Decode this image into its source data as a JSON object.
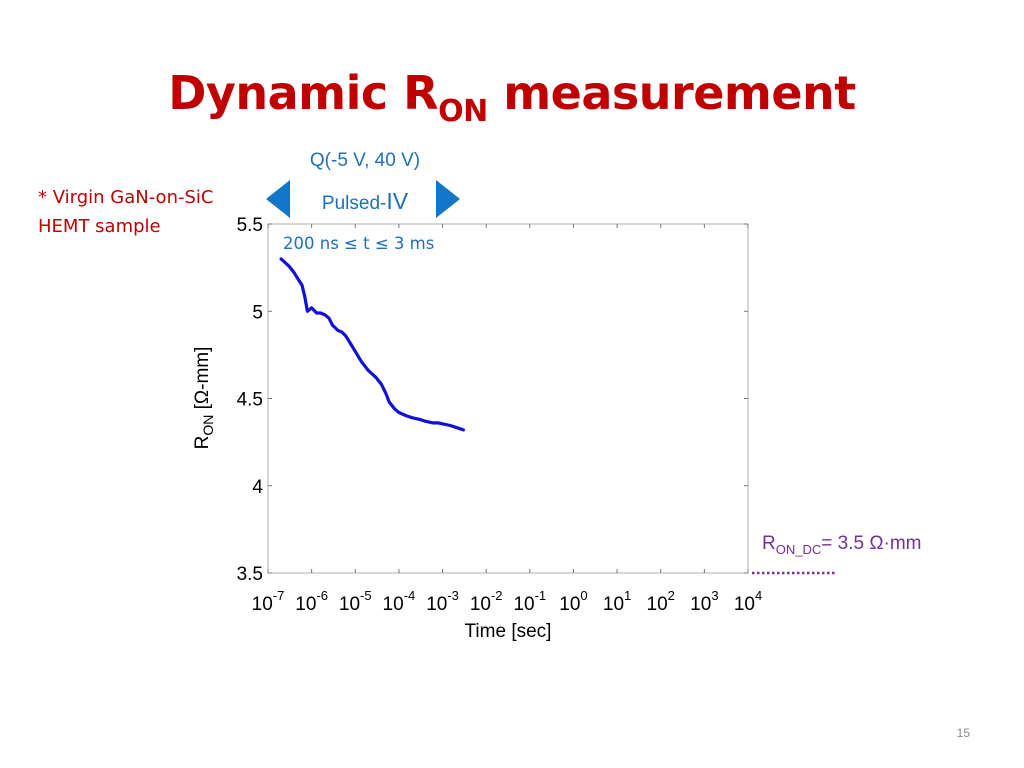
{
  "slide": {
    "title_main": "Dynamic R",
    "title_sub": "ON",
    "title_rest": " measurement",
    "note": "* Virgin GaN-on-SiC HEMT sample",
    "condition": "Q(-5 V, 40 V)",
    "pulsed_prefix": "Pulsed-",
    "pulsed_suffix": "IV",
    "pulse_range": "200 ns ≤ t ≤ 3 ms",
    "ron_dc_main": "R",
    "ron_dc_sub": "ON_DC",
    "ron_dc_value": "= 3.5 Ω·mm",
    "page_number": "15",
    "colors": {
      "title": "#c00000",
      "series": "#1010d8",
      "annotation": "#1f6fc0",
      "dc_reference": "#7030a0"
    }
  },
  "chart_data": {
    "type": "line",
    "xlabel": "Time [sec]",
    "ylabel_main": "R",
    "ylabel_sub": "ON",
    "ylabel_unit": " [Ω-mm]",
    "x_scale": "log",
    "xlim": [
      1e-07,
      10000
    ],
    "ylim": [
      3.5,
      5.5
    ],
    "x_tick_exponents": [
      -7,
      -6,
      -5,
      -4,
      -3,
      -2,
      -1,
      0,
      1,
      2,
      3,
      4
    ],
    "x_tick_base": "10",
    "y_ticks": [
      3.5,
      4,
      4.5,
      5,
      5.5
    ],
    "y_tick_labels": [
      "3.5",
      "4",
      "4.5",
      "5",
      "5.5"
    ],
    "grid": false,
    "series": [
      {
        "x": [
          2e-07,
          3e-07,
          4e-07,
          5e-07,
          6e-07,
          7e-07,
          8e-07,
          1e-06,
          1.3e-06,
          1.6e-06,
          2e-06,
          2.5e-06,
          3e-06,
          4e-06,
          5e-06,
          6e-06,
          8e-06,
          1e-05,
          1.4e-05,
          2e-05,
          3e-05,
          4e-05,
          5e-05,
          6e-05,
          8e-05,
          0.0001,
          0.00015,
          0.0002,
          0.0003,
          0.0004,
          0.0006,
          0.0008,
          0.001,
          0.0015,
          0.002,
          0.003
        ],
        "y": [
          5.3,
          5.26,
          5.22,
          5.18,
          5.15,
          5.08,
          5.0,
          5.02,
          4.99,
          4.99,
          4.98,
          4.96,
          4.92,
          4.89,
          4.88,
          4.86,
          4.81,
          4.77,
          4.71,
          4.66,
          4.62,
          4.58,
          4.53,
          4.48,
          4.44,
          4.42,
          4.4,
          4.39,
          4.38,
          4.37,
          4.36,
          4.36,
          4.355,
          4.345,
          4.335,
          4.32
        ]
      }
    ],
    "reference_line": {
      "y": 3.5
    }
  }
}
